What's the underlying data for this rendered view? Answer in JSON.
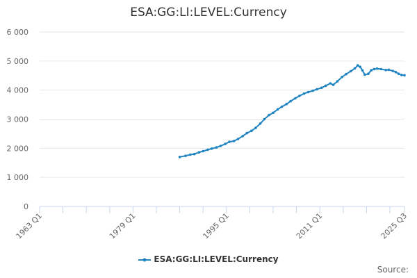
{
  "chart_data": {
    "type": "line",
    "title": "ESA:GG:LI:LEVEL:Currency",
    "xlabel": "",
    "ylabel": "",
    "ylim": [
      0,
      6000
    ],
    "yticks": [
      0,
      1000,
      2000,
      3000,
      4000,
      5000,
      6000
    ],
    "ytick_labels": [
      "0",
      "1 000",
      "2 000",
      "3 000",
      "4 000",
      "5 000",
      "6 000"
    ],
    "xlim": [
      1963.0,
      2025.5
    ],
    "xticks": [
      1963.0,
      1979.0,
      1995.0,
      2011.0,
      2025.5
    ],
    "xtick_labels": [
      "1963 Q1",
      "1979 Q1",
      "1995 Q1",
      "2011 Q1",
      "2025 Q3"
    ],
    "legend_position": "bottom-center",
    "grid": true,
    "series": [
      {
        "name": "ESA:GG:LI:LEVEL:Currency",
        "color": "#1f84c1",
        "points": [
          [
            1987.0,
            1700
          ],
          [
            1988.0,
            1740
          ],
          [
            1988.8,
            1780
          ],
          [
            1989.5,
            1800
          ],
          [
            1990.3,
            1860
          ],
          [
            1991.0,
            1900
          ],
          [
            1991.8,
            1950
          ],
          [
            1992.5,
            1990
          ],
          [
            1993.3,
            2030
          ],
          [
            1994.0,
            2080
          ],
          [
            1994.8,
            2150
          ],
          [
            1995.5,
            2220
          ],
          [
            1996.3,
            2250
          ],
          [
            1997.0,
            2320
          ],
          [
            1997.8,
            2420
          ],
          [
            1998.5,
            2520
          ],
          [
            1999.3,
            2600
          ],
          [
            2000.0,
            2700
          ],
          [
            2000.8,
            2850
          ],
          [
            2001.5,
            3000
          ],
          [
            2002.3,
            3140
          ],
          [
            2003.0,
            3220
          ],
          [
            2003.8,
            3340
          ],
          [
            2004.5,
            3430
          ],
          [
            2005.3,
            3520
          ],
          [
            2006.0,
            3620
          ],
          [
            2006.8,
            3720
          ],
          [
            2007.5,
            3800
          ],
          [
            2008.3,
            3880
          ],
          [
            2009.0,
            3930
          ],
          [
            2009.8,
            3980
          ],
          [
            2010.5,
            4030
          ],
          [
            2011.3,
            4080
          ],
          [
            2012.0,
            4150
          ],
          [
            2012.8,
            4230
          ],
          [
            2013.3,
            4180
          ],
          [
            2014.0,
            4300
          ],
          [
            2014.8,
            4450
          ],
          [
            2015.5,
            4550
          ],
          [
            2016.3,
            4650
          ],
          [
            2017.0,
            4750
          ],
          [
            2017.5,
            4850
          ],
          [
            2017.9,
            4800
          ],
          [
            2018.3,
            4680
          ],
          [
            2018.7,
            4530
          ],
          [
            2019.3,
            4560
          ],
          [
            2019.8,
            4680
          ],
          [
            2020.3,
            4720
          ],
          [
            2020.8,
            4740
          ],
          [
            2021.5,
            4720
          ],
          [
            2022.3,
            4690
          ],
          [
            2022.8,
            4700
          ],
          [
            2023.5,
            4660
          ],
          [
            2024.0,
            4620
          ],
          [
            2024.5,
            4560
          ],
          [
            2025.0,
            4520
          ],
          [
            2025.5,
            4510
          ]
        ]
      }
    ]
  },
  "legend": {
    "label": "ESA:GG:LI:LEVEL:Currency"
  },
  "source": {
    "label": "Source:"
  }
}
